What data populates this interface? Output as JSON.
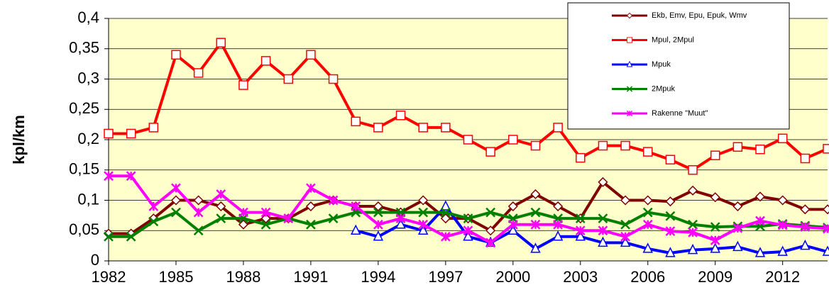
{
  "chart_data": {
    "type": "line",
    "y_label": "kpl/km",
    "x": [
      1982,
      1983,
      1984,
      1985,
      1986,
      1987,
      1988,
      1989,
      1990,
      1991,
      1992,
      1993,
      1994,
      1995,
      1996,
      1997,
      1998,
      1999,
      2000,
      2001,
      2002,
      2003,
      2004,
      2005,
      2006,
      2007,
      2008,
      2009,
      2010,
      2011,
      2012,
      2013,
      2014
    ],
    "series": [
      {
        "name": "Ekb, Emv, Epu, Epuk, Wmv",
        "color": "#800000",
        "marker": "diamond",
        "values": [
          0.045,
          0.045,
          0.07,
          0.1,
          0.1,
          0.09,
          0.06,
          0.07,
          0.07,
          0.09,
          0.1,
          0.09,
          0.09,
          0.08,
          0.1,
          0.07,
          0.07,
          0.05,
          0.09,
          0.11,
          0.09,
          0.07,
          0.13,
          0.1,
          0.1,
          0.098,
          0.116,
          0.105,
          0.09,
          0.106,
          0.1,
          0.085,
          0.085
        ]
      },
      {
        "name": "Mpul, 2Mpul",
        "color": "#ff0000",
        "marker": "square",
        "values": [
          0.21,
          0.21,
          0.22,
          0.34,
          0.31,
          0.36,
          0.29,
          0.33,
          0.3,
          0.34,
          0.3,
          0.23,
          0.22,
          0.24,
          0.22,
          0.22,
          0.2,
          0.18,
          0.2,
          0.19,
          0.22,
          0.17,
          0.19,
          0.19,
          0.18,
          0.167,
          0.15,
          0.174,
          0.188,
          0.184,
          0.202,
          0.169,
          0.185
        ]
      },
      {
        "name": "Mpuk",
        "color": "#0000ff",
        "marker": "triangle",
        "values": [
          null,
          null,
          null,
          null,
          null,
          null,
          null,
          null,
          null,
          null,
          null,
          0.05,
          0.04,
          0.06,
          0.05,
          0.09,
          0.04,
          0.03,
          0.05,
          0.02,
          0.04,
          0.04,
          0.03,
          0.03,
          0.02,
          0.013,
          0.018,
          0.02,
          0.023,
          0.013,
          0.015,
          0.025,
          0.015
        ]
      },
      {
        "name": "2Mpuk",
        "color": "#008000",
        "marker": "x",
        "values": [
          0.04,
          0.04,
          0.065,
          0.08,
          0.05,
          0.07,
          0.07,
          0.06,
          0.07,
          0.06,
          0.07,
          0.08,
          0.08,
          0.08,
          0.08,
          0.08,
          0.07,
          0.08,
          0.07,
          0.08,
          0.07,
          0.07,
          0.07,
          0.06,
          0.08,
          0.074,
          0.06,
          0.056,
          0.057,
          0.057,
          0.061,
          0.058,
          0.055
        ]
      },
      {
        "name": "Rakenne \"Muut\"",
        "color": "#ff00ff",
        "marker": "star",
        "values": [
          0.14,
          0.14,
          0.09,
          0.12,
          0.08,
          0.11,
          0.08,
          0.08,
          0.07,
          0.12,
          0.1,
          0.09,
          0.06,
          0.07,
          0.06,
          0.04,
          0.05,
          0.03,
          0.06,
          0.06,
          0.06,
          0.05,
          0.05,
          0.04,
          0.06,
          0.049,
          0.047,
          0.034,
          0.054,
          0.066,
          0.059,
          0.056,
          0.053
        ]
      }
    ],
    "xlim": [
      1982,
      2014
    ],
    "xticks": [
      1982,
      1985,
      1988,
      1991,
      1994,
      1997,
      2000,
      2003,
      2006,
      2009,
      2012
    ],
    "ylim": [
      0,
      0.4
    ],
    "yticks": [
      0,
      {
        "value": 0.05,
        "label": "0,05"
      },
      {
        "value": 0.1,
        "label": "0,1"
      },
      {
        "value": 0.15,
        "label": "0,15"
      },
      {
        "value": 0.2,
        "label": "0,2"
      },
      {
        "value": 0.25,
        "label": "0,25"
      },
      {
        "value": 0.3,
        "label": "0,3"
      },
      {
        "value": 0.35,
        "label": "0,35"
      },
      {
        "value": 0.4,
        "label": "0,4"
      }
    ],
    "grid": true,
    "legend": "top-right",
    "background": "#ffffcc"
  }
}
